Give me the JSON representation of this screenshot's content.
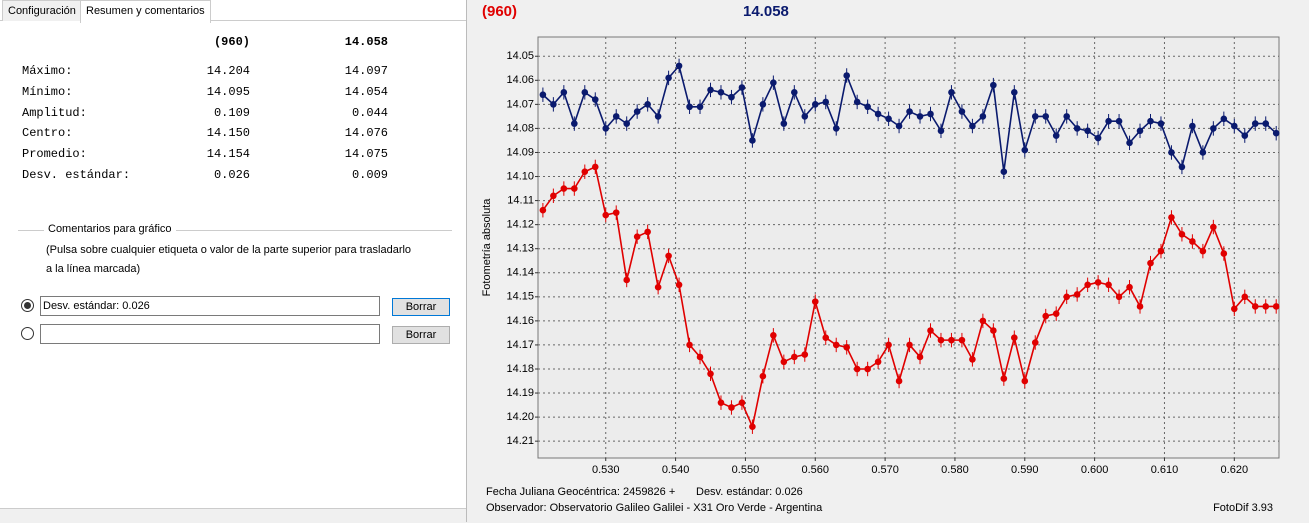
{
  "tabs": [
    "Configuración",
    "Resumen y comentarios"
  ],
  "stats": {
    "rows": [
      {
        "label": "Máximo:",
        "values": [
          "14.204",
          "14.097"
        ]
      },
      {
        "label": "Mínimo:",
        "values": [
          "14.095",
          "14.054"
        ]
      },
      {
        "label": "Amplitud:",
        "values": [
          "0.109",
          "0.044"
        ]
      },
      {
        "label": "Centro:",
        "values": [
          "14.150",
          "14.076"
        ]
      },
      {
        "label": "Promedio:",
        "values": [
          "14.154",
          "14.075"
        ]
      },
      {
        "label": "Desv. estándar:",
        "values": [
          "0.026",
          "0.009"
        ]
      }
    ]
  },
  "comments": {
    "title": "Comentarios para gráfico",
    "note": [
      "(Pulsa sobre cualquier etiqueta o valor de la parte superior para trasladarlo",
      "a la línea marcada)"
    ],
    "rows": [
      {
        "text": "Desv. estándar: 0.026",
        "button": "Borrar"
      },
      {
        "button": "Borrar"
      }
    ]
  },
  "chart_data": {
    "type": "line",
    "ylabel": "Fotometría absoluta",
    "x": [
      0.521,
      0.5225,
      0.524,
      0.5255,
      0.527,
      0.5285,
      0.53,
      0.5315,
      0.533,
      0.5345,
      0.536,
      0.5375,
      0.539,
      0.5405,
      0.542,
      0.5435,
      0.545,
      0.5465,
      0.548,
      0.5495,
      0.551,
      0.5525,
      0.554,
      0.5555,
      0.557,
      0.5585,
      0.56,
      0.5615,
      0.563,
      0.5645,
      0.566,
      0.5675,
      0.569,
      0.5705,
      0.572,
      0.5735,
      0.575,
      0.5765,
      0.578,
      0.5795,
      0.581,
      0.5825,
      0.584,
      0.5855,
      0.587,
      0.5885,
      0.59,
      0.5915,
      0.593,
      0.5945,
      0.596,
      0.5975,
      0.599,
      0.6005,
      0.602,
      0.6035,
      0.605,
      0.6065,
      0.608,
      0.6095,
      0.611,
      0.6125,
      0.614,
      0.6155,
      0.617,
      0.6185,
      0.62,
      0.6215,
      0.623,
      0.6245,
      0.626
    ],
    "series": [
      {
        "name": "(960)",
        "color": "#e00000",
        "error": 0.003,
        "values": [
          14.114,
          14.108,
          14.105,
          14.105,
          14.098,
          14.096,
          14.116,
          14.115,
          14.143,
          14.125,
          14.123,
          14.146,
          14.133,
          14.145,
          14.17,
          14.175,
          14.182,
          14.194,
          14.196,
          14.194,
          14.204,
          14.183,
          14.166,
          14.177,
          14.175,
          14.174,
          14.152,
          14.167,
          14.17,
          14.171,
          14.18,
          14.18,
          14.177,
          14.17,
          14.185,
          14.17,
          14.175,
          14.164,
          14.168,
          14.168,
          14.168,
          14.176,
          14.16,
          14.164,
          14.184,
          14.167,
          14.185,
          14.169,
          14.158,
          14.157,
          14.15,
          14.149,
          14.145,
          14.144,
          14.145,
          14.15,
          14.146,
          14.154,
          14.136,
          14.131,
          14.117,
          14.124,
          14.127,
          14.131,
          14.121,
          14.132,
          14.155,
          14.15,
          14.154,
          14.154,
          14.154
        ]
      },
      {
        "name": "14.058",
        "color": "#0a1a6e",
        "error": 0.003,
        "values": [
          14.066,
          14.07,
          14.065,
          14.078,
          14.065,
          14.068,
          14.08,
          14.075,
          14.078,
          14.073,
          14.07,
          14.075,
          14.059,
          14.054,
          14.071,
          14.071,
          14.064,
          14.065,
          14.067,
          14.063,
          14.085,
          14.07,
          14.061,
          14.078,
          14.065,
          14.075,
          14.07,
          14.069,
          14.08,
          14.058,
          14.069,
          14.071,
          14.074,
          14.076,
          14.079,
          14.073,
          14.075,
          14.074,
          14.081,
          14.065,
          14.073,
          14.079,
          14.075,
          14.062,
          14.098,
          14.065,
          14.089,
          14.075,
          14.075,
          14.083,
          14.075,
          14.08,
          14.081,
          14.084,
          14.077,
          14.077,
          14.086,
          14.081,
          14.077,
          14.078,
          14.09,
          14.096,
          14.079,
          14.09,
          14.08,
          14.076,
          14.079,
          14.083,
          14.078,
          14.078,
          14.082
        ]
      }
    ],
    "xlim": [
      0.5203,
      0.6264
    ],
    "ylim": [
      14.217,
      14.042
    ],
    "xticks": [
      {
        "value": 0.53,
        "label": "0.530"
      },
      {
        "value": 0.54,
        "label": "0.540"
      },
      {
        "value": 0.55,
        "label": "0.550"
      },
      {
        "value": 0.56,
        "label": "0.560"
      },
      {
        "value": 0.57,
        "label": "0.570"
      },
      {
        "value": 0.58,
        "label": "0.580"
      },
      {
        "value": 0.59,
        "label": "0.590"
      },
      {
        "value": 0.6,
        "label": "0.600"
      },
      {
        "value": 0.61,
        "label": "0.610"
      },
      {
        "value": 0.62,
        "label": "0.620"
      }
    ],
    "yticks": [
      14.05,
      14.06,
      14.07,
      14.08,
      14.09,
      {
        "value": 14.1,
        "label": "14.10"
      },
      14.11,
      14.12,
      14.13,
      14.14,
      14.15,
      14.16,
      14.17,
      14.18,
      14.19,
      {
        "value": 14.2,
        "label": "14.20"
      },
      14.21
    ],
    "grid": true,
    "footer": {
      "date": "Fecha Juliana Geocéntrica: 2459826 +",
      "std": "Desv. estándar: 0.026",
      "observer": "Observador: Observatorio Galileo Galilei - X31 Oro Verde - Argentina",
      "version": "FotoDif 3.93"
    }
  }
}
